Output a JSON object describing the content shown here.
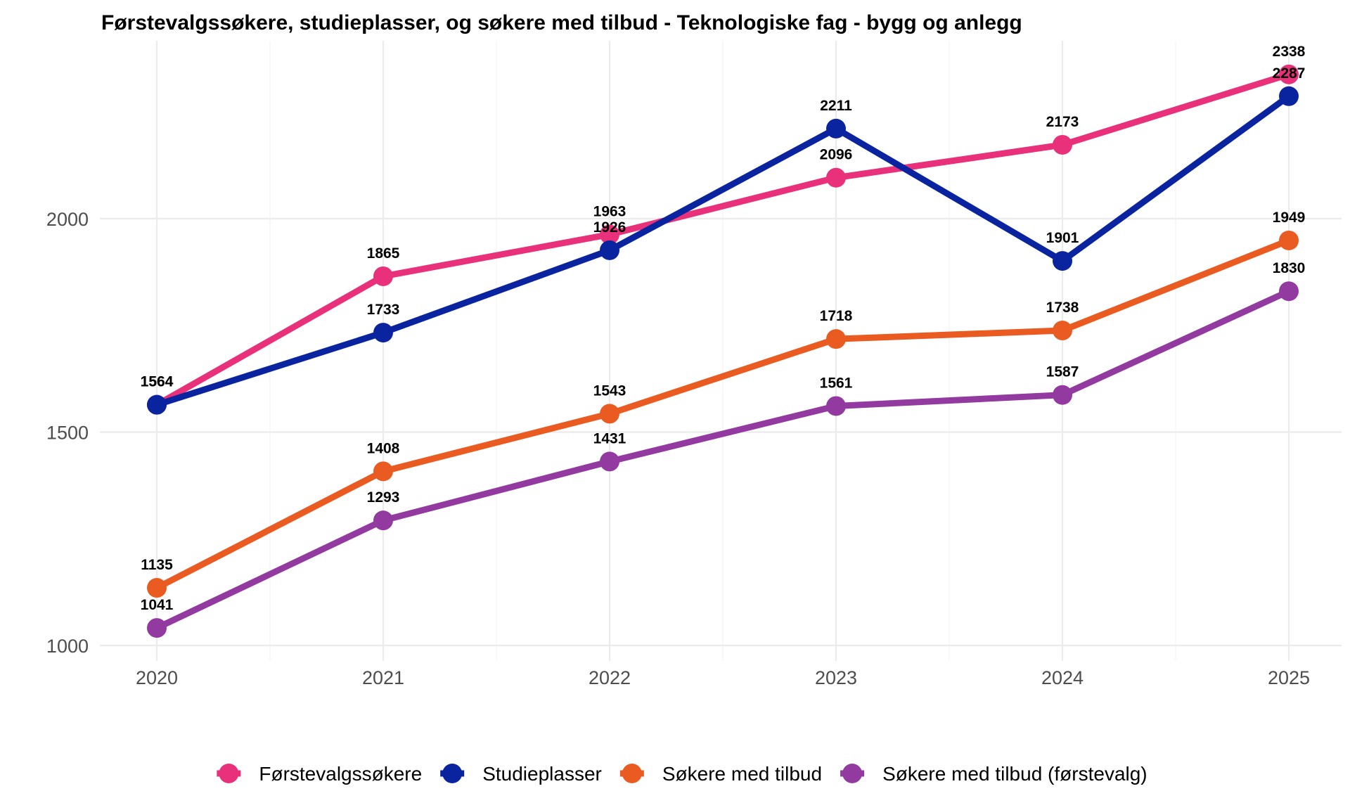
{
  "chart_data": {
    "type": "line",
    "title": "Førstevalgssøkere, studieplasser, og søkere med tilbud - Teknologiske fag - bygg og anlegg",
    "xlabel": "",
    "ylabel": "",
    "x": [
      "2020",
      "2021",
      "2022",
      "2023",
      "2024",
      "2025"
    ],
    "ylim": [
      960,
      2370
    ],
    "y_ticks": [
      1000,
      1500,
      2000
    ],
    "grid": true,
    "legend_position": "bottom",
    "series": [
      {
        "name": "Førstevalgssøkere",
        "color": "#E8317A",
        "values": [
          1564,
          1865,
          1963,
          2096,
          2173,
          2338
        ]
      },
      {
        "name": "Studieplasser",
        "color": "#0A24A0",
        "values": [
          1564,
          1733,
          1926,
          2211,
          1901,
          2287
        ]
      },
      {
        "name": "Søkere med tilbud",
        "color": "#EA5B22",
        "values": [
          1135,
          1408,
          1543,
          1718,
          1738,
          1949
        ]
      },
      {
        "name": "Søkere med tilbud (førstevalg)",
        "color": "#933AA0",
        "values": [
          1041,
          1293,
          1431,
          1561,
          1587,
          1830
        ]
      }
    ]
  }
}
